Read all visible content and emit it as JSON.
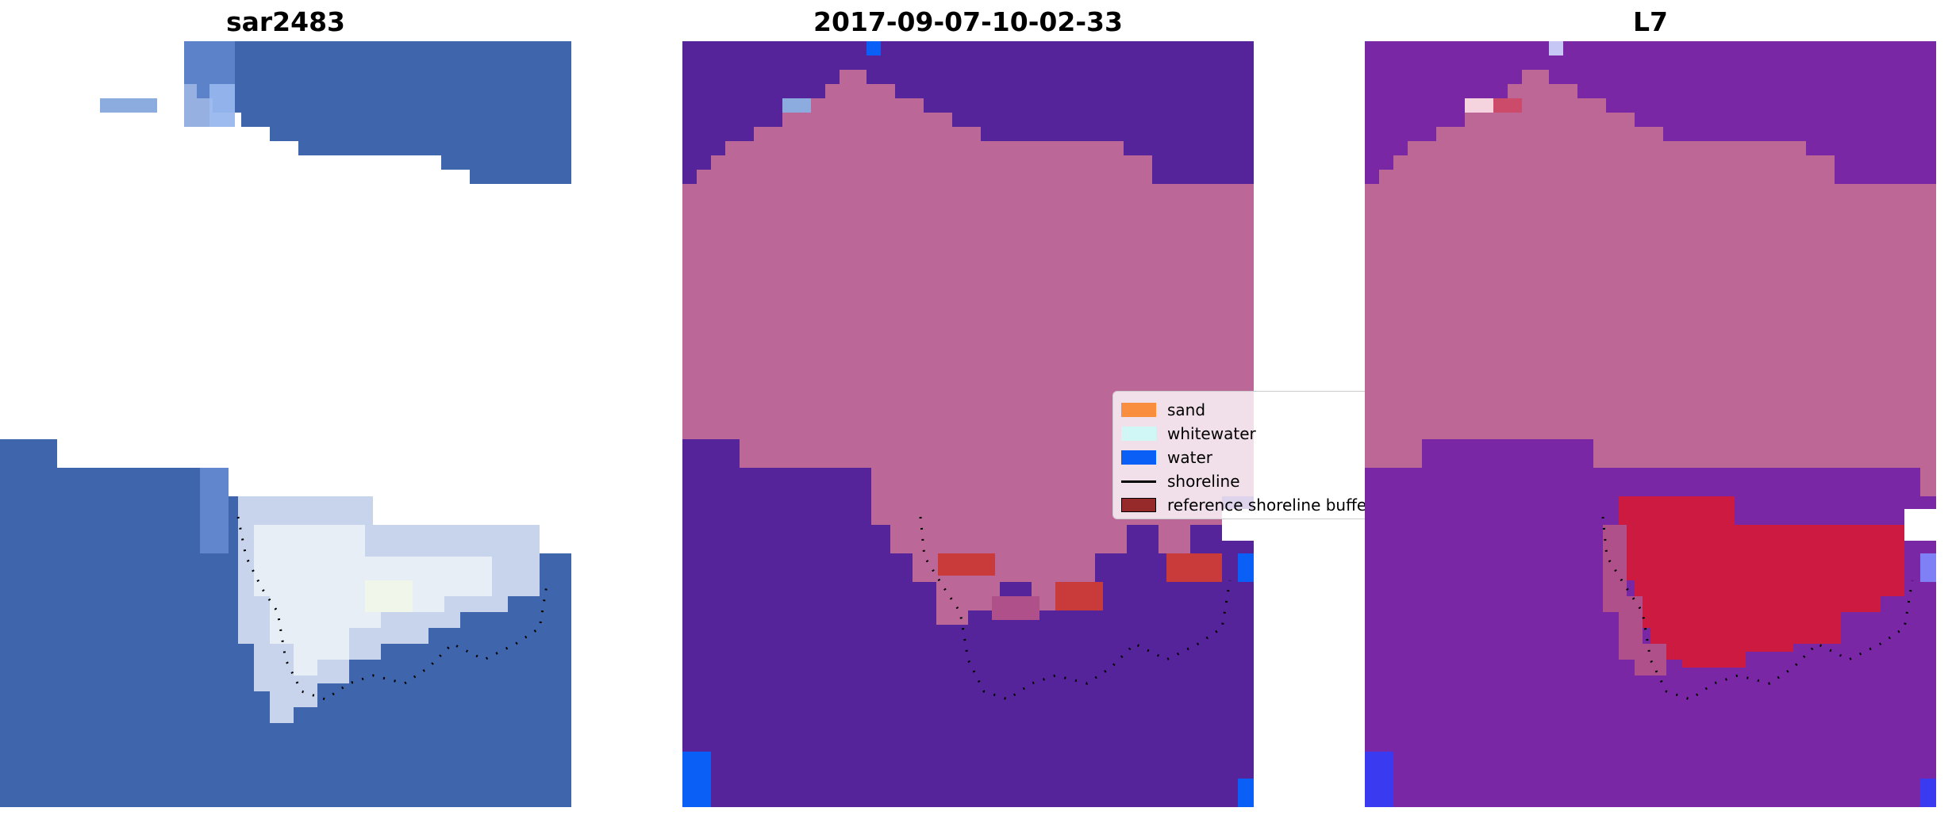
{
  "panels": [
    {
      "title": "sar2483"
    },
    {
      "title": "2017-09-07-10-02-33"
    },
    {
      "title": "L7"
    }
  ],
  "legend": {
    "items": [
      {
        "label": "sand",
        "kind": "patch",
        "color": "#f98e3e"
      },
      {
        "label": "whitewater",
        "kind": "patch",
        "color": "#d0f7f5"
      },
      {
        "label": "water",
        "kind": "patch",
        "color": "#0a5ff6"
      },
      {
        "label": "shoreline",
        "kind": "line",
        "color": "#000000"
      },
      {
        "label": "reference shoreline buffer",
        "kind": "patch",
        "color": "#962a2a"
      }
    ]
  },
  "colors": {
    "sea_blue": "#3f66ad",
    "classified_water_purple": "#55249a",
    "classified_land_pink": "#bb6798",
    "classified_buffer_red": "#c93a3a",
    "l7_purple": "#7a27a6",
    "l7_land_pink": "#bc6796",
    "l7_red": "#cc1a40",
    "edge_blue": "#0a5ff6",
    "whitewater": "#e7eef5"
  }
}
